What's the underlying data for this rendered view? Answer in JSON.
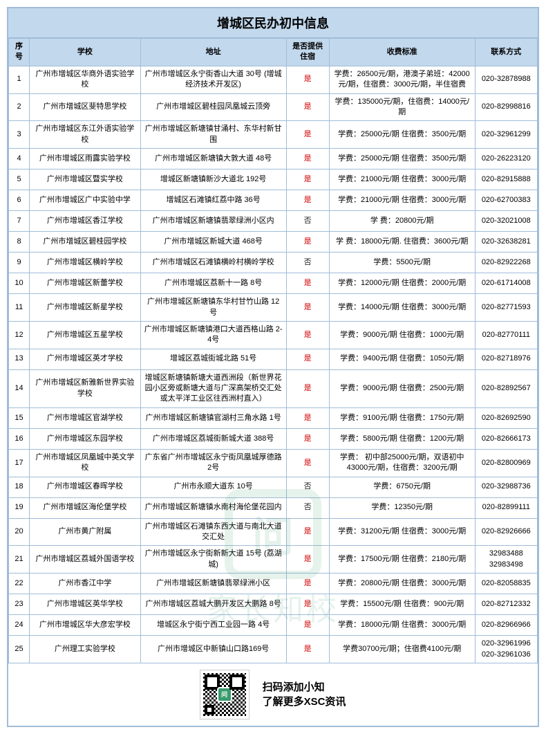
{
  "title": "增城区民办初中信息",
  "columns": [
    "序号",
    "学校",
    "地址",
    "是否提供住宿",
    "收费标准",
    "联系方式"
  ],
  "footer": {
    "line1": "扫码添加小知",
    "line2": "了解更多XSC资讯"
  },
  "watermark": {
    "icon_text": "问",
    "text": "家长知校"
  },
  "rows": [
    {
      "num": "1",
      "school": "广州市增城区华商外语实验学校",
      "address": "广州市增城区永宁街香山大道 30号 (增城经济技术开发区)",
      "board": "是",
      "fee": "学费：26500元/期，港澳子弟班：42000元/期，住宿费：3000元/期，半住宿费",
      "contact": "020-32878988"
    },
    {
      "num": "2",
      "school": "广州市增城区斐特思学校",
      "address": "广州市增城区碧桂园凤凰城云顶旁",
      "board": "是",
      "fee": "学费：135000元/期，住宿费：14000元/期",
      "contact": "020-82998816"
    },
    {
      "num": "3",
      "school": "广州市增城区东江外语实验学校",
      "address": "广州市增城区新塘镇甘涌村、东华村新甘围",
      "board": "是",
      "fee": "学费：25000元/期 住宿费：3500元/期",
      "contact": "020-32961299"
    },
    {
      "num": "4",
      "school": "广州市增城区雨露实验学校",
      "address": "广州市增城区新塘镇大敦大道 48号",
      "board": "是",
      "fee": "学费：25000元/期 住宿费：3500元/期",
      "contact": "020-26223120"
    },
    {
      "num": "5",
      "school": "广州市增城区暨实学校",
      "address": "增城区新塘镇新沙大道北 192号",
      "board": "是",
      "fee": "学费：21000元/期 住宿费：3000元/期",
      "contact": "020-82915888"
    },
    {
      "num": "6",
      "school": "广州市增城区广中实验中学",
      "address": "增城区石滩镇红荔中路 36号",
      "board": "是",
      "fee": "学费：21000元/期    住宿费：3000元/期",
      "contact": "020-62700383"
    },
    {
      "num": "7",
      "school": "广州市增城区香江学校",
      "address": "广州市增城区新塘镇翡翠绿洲小区内",
      "board": "否",
      "fee": "学 费：20800元/期",
      "contact": "020-32021008"
    },
    {
      "num": "8",
      "school": "广州市增城区碧桂园学校",
      "address": "广州市增城区新城大道 468号",
      "board": "是",
      "fee": "学 费：18000元/期. 住宿费：3600元/期",
      "contact": "020-32638281"
    },
    {
      "num": "9",
      "school": "广州市增城区横岭学校",
      "address": "广州市增城区石滩镇横岭村横岭学校",
      "board": "否",
      "fee": "学费：5500元/期",
      "contact": "020-82922268"
    },
    {
      "num": "10",
      "school": "广州市增城区新蕾学校",
      "address": "广州市增城区荔新十一路 8号",
      "board": "是",
      "fee": "学费：12000元/期  住宿费：2000元/期",
      "contact": "020-61714008"
    },
    {
      "num": "11",
      "school": "广州市增城区新星学校",
      "address": "广州市增城区新塘镇东华村甘竹山路 12号",
      "board": "是",
      "fee": "学费：14000元/期 住宿费：3000元/期",
      "contact": "020-82771593"
    },
    {
      "num": "12",
      "school": "广州市增城区五星学校",
      "address": "广州市增城区新塘镇港口大道西格山路 2-4号",
      "board": "是",
      "fee": "学费：9000元/期 住宿费：1000元/期",
      "contact": "020-82770111"
    },
    {
      "num": "13",
      "school": "广州市增城区英才学校",
      "address": "增城区荔城街城北路 51号",
      "board": "是",
      "fee": "学费：9400元/期 住宿费：1050元/期",
      "contact": "020-82718976"
    },
    {
      "num": "14",
      "school": "广州市增城区新雅新世界实验学校",
      "address": "增城区新塘镇新塘大道西洲段（新世界花园小区旁或新塘大道与广深高架桥交汇处或太平洋工业区往西洲村直入）",
      "board": "是",
      "fee": "学费：9000元/期 住宿费：2500元/期",
      "contact": "020-82892567"
    },
    {
      "num": "15",
      "school": "广州市增城区官湖学校",
      "address": "广州市增城区新塘镇官湖村三角水路 1号",
      "board": "是",
      "fee": "学费：9100元/期 住宿费：1750元/期",
      "contact": "020-82692590"
    },
    {
      "num": "16",
      "school": "广州市增城区东园学校",
      "address": "广州市增城区荔城街新城大道 388号",
      "board": "是",
      "fee": "学费：5800元/期 住宿费：1200元/期",
      "contact": "020-82666173"
    },
    {
      "num": "17",
      "school": "广州市增城区凤凰城中英文学校",
      "address": "广东省广州市增城区永宁街凤凰城厚德路 2号",
      "board": "是",
      "fee": "学费：  初中部25000元/期，双语初中43000元/期，住宿费：3200元/期",
      "contact": "020-82800969"
    },
    {
      "num": "18",
      "school": "广州市增城区春晖学校",
      "address": "广州市永顺大道东 10号",
      "board": "否",
      "fee": "学费：6750元/期",
      "contact": "020-32988736"
    },
    {
      "num": "19",
      "school": "广州市增城区海伦堡学校",
      "address": "广州市增城区新塘镇水南村海伦堡花园内",
      "board": "否",
      "fee": "学费：12350元/期",
      "contact": "020-82899111"
    },
    {
      "num": "20",
      "school": "广州市黄广附属",
      "address": "广州市增城区石滩镇东西大道与南北大道交汇处",
      "board": "是",
      "fee": "学费：31200元/期 住宿费：3000元/期",
      "contact": "020-82926666"
    },
    {
      "num": "21",
      "school": "广州市增城区荔城外国语学校",
      "address": "广州市增城区永宁街新新大道 15号 (荔湖城)",
      "board": "是",
      "fee": "学费：17500元/期 住宿费：2180元/期",
      "contact": "32983488  32983498"
    },
    {
      "num": "22",
      "school": "广州市香江中学",
      "address": "广州市增城区新塘镇翡翠绿洲小区",
      "board": "是",
      "fee": "学费：20800元/期 住宿费：3000元/期",
      "contact": "020-82058835"
    },
    {
      "num": "23",
      "school": "广州市增城区英华学校",
      "address": "广州市增城区荔城大鹏开发区大鹏路 8号",
      "board": "是",
      "fee": "学费：15500元/期 住宿费：900元/期",
      "contact": "020-82712332"
    },
    {
      "num": "24",
      "school": "广州市增城区华大彦宏学校",
      "address": "增城区永宁街宁西工业园一路 4号",
      "board": "是",
      "fee": "学费：18000元/期 住宿费：3000元/期",
      "contact": "020-82966966"
    },
    {
      "num": "25",
      "school": "广州理工实验学校",
      "address": "广州市增城区中新镇山口路169号",
      "board": "是",
      "fee": "学费30700元/期；住宿费4100元/期",
      "contact": "020-32961996 020-32961036"
    }
  ]
}
